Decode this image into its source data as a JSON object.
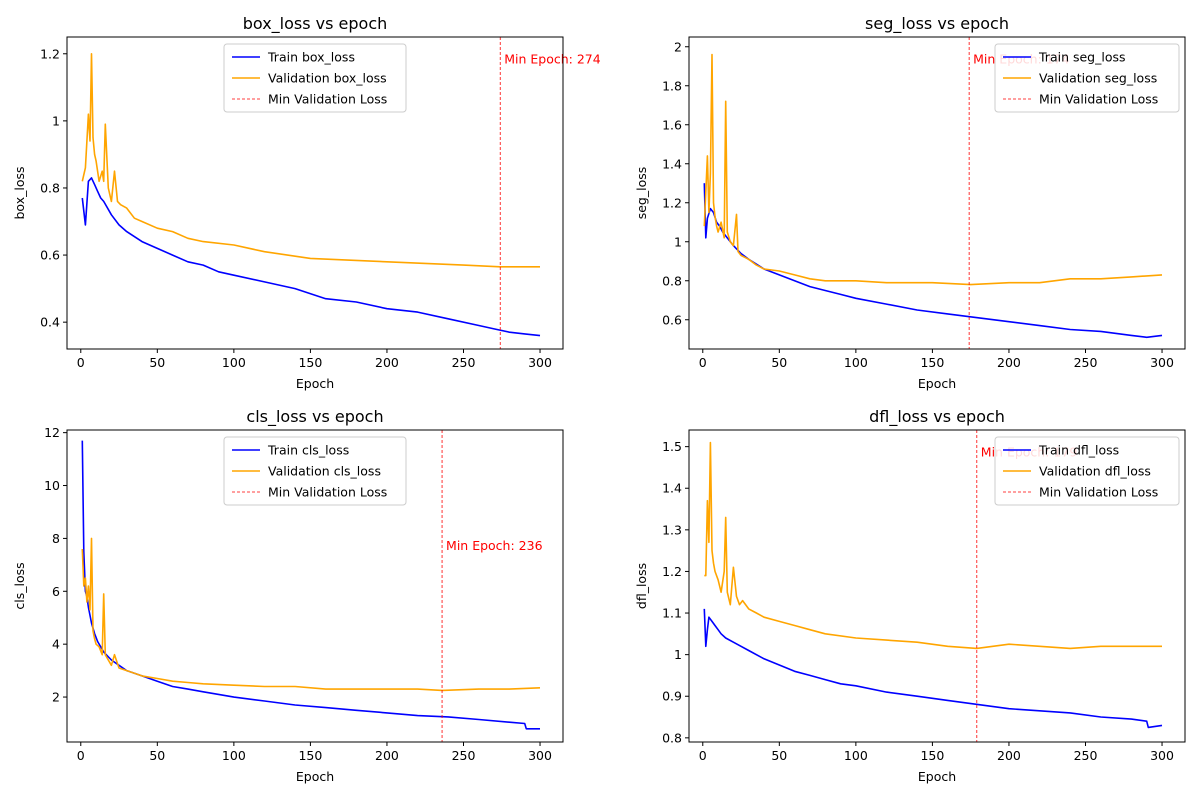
{
  "chart_data": [
    {
      "type": "line",
      "title": "box_loss vs epoch",
      "xlabel": "Epoch",
      "ylabel": "box_loss",
      "xlim": [
        -9,
        315
      ],
      "ylim": [
        0.32,
        1.25
      ],
      "xticks": [
        0,
        50,
        100,
        150,
        200,
        250,
        300
      ],
      "yticks": [
        0.4,
        0.6,
        0.8,
        1.0,
        1.2
      ],
      "grid": false,
      "legend_position": "top-center",
      "series": [
        {
          "name": "Train box_loss",
          "color": "#0000ff",
          "x": [
            1,
            3,
            5,
            7,
            9,
            11,
            13,
            15,
            20,
            25,
            30,
            40,
            50,
            60,
            70,
            80,
            90,
            100,
            120,
            140,
            160,
            180,
            200,
            220,
            240,
            260,
            270,
            280,
            290,
            300
          ],
          "y": [
            0.77,
            0.69,
            0.82,
            0.83,
            0.81,
            0.79,
            0.77,
            0.76,
            0.72,
            0.69,
            0.67,
            0.64,
            0.62,
            0.6,
            0.58,
            0.57,
            0.55,
            0.54,
            0.52,
            0.5,
            0.47,
            0.46,
            0.44,
            0.43,
            0.41,
            0.39,
            0.38,
            0.37,
            0.365,
            0.36
          ]
        },
        {
          "name": "Validation box_loss",
          "color": "#ffa500",
          "x": [
            1,
            3,
            5,
            6,
            7,
            8,
            9,
            10,
            12,
            14,
            15,
            16,
            18,
            20,
            22,
            24,
            26,
            30,
            35,
            40,
            50,
            60,
            70,
            80,
            100,
            120,
            150,
            200,
            250,
            274,
            300
          ],
          "y": [
            0.82,
            0.86,
            1.02,
            0.94,
            1.2,
            0.95,
            0.9,
            0.88,
            0.82,
            0.85,
            0.82,
            0.99,
            0.8,
            0.76,
            0.85,
            0.76,
            0.75,
            0.74,
            0.71,
            0.7,
            0.68,
            0.67,
            0.65,
            0.64,
            0.63,
            0.61,
            0.59,
            0.58,
            0.57,
            0.565,
            0.565
          ]
        }
      ],
      "min_line": {
        "label": "Min Validation Loss",
        "color": "#ff0000",
        "x": 274,
        "annotation": "Min Epoch: 274"
      }
    },
    {
      "type": "line",
      "title": "seg_loss vs epoch",
      "xlabel": "Epoch",
      "ylabel": "seg_loss",
      "xlim": [
        -9,
        315
      ],
      "ylim": [
        0.45,
        2.05
      ],
      "xticks": [
        0,
        50,
        100,
        150,
        200,
        250,
        300
      ],
      "yticks": [
        0.6,
        0.8,
        1.0,
        1.2,
        1.4,
        1.6,
        1.8,
        2.0
      ],
      "grid": false,
      "legend_position": "top-right",
      "series": [
        {
          "name": "Train seg_loss",
          "color": "#0000ff",
          "x": [
            1,
            2,
            3,
            5,
            7,
            9,
            11,
            13,
            15,
            20,
            25,
            30,
            40,
            50,
            60,
            70,
            80,
            90,
            100,
            120,
            140,
            160,
            180,
            200,
            220,
            240,
            260,
            280,
            290,
            300
          ],
          "y": [
            1.3,
            1.02,
            1.12,
            1.17,
            1.15,
            1.1,
            1.08,
            1.05,
            1.03,
            0.98,
            0.94,
            0.91,
            0.86,
            0.83,
            0.8,
            0.77,
            0.75,
            0.73,
            0.71,
            0.68,
            0.65,
            0.63,
            0.61,
            0.59,
            0.57,
            0.55,
            0.54,
            0.52,
            0.51,
            0.52
          ]
        },
        {
          "name": "Validation seg_loss",
          "color": "#ffa500",
          "x": [
            1,
            3,
            4,
            5,
            6,
            7,
            8,
            9,
            10,
            12,
            14,
            15,
            16,
            18,
            20,
            22,
            23,
            25,
            30,
            35,
            40,
            50,
            60,
            70,
            80,
            100,
            120,
            150,
            175,
            200,
            220,
            240,
            260,
            280,
            300
          ],
          "y": [
            1.08,
            1.44,
            1.15,
            1.35,
            1.96,
            1.2,
            1.13,
            1.08,
            1.05,
            1.1,
            1.02,
            1.72,
            1.05,
            1.0,
            0.98,
            1.14,
            0.95,
            0.93,
            0.91,
            0.88,
            0.86,
            0.85,
            0.83,
            0.81,
            0.8,
            0.8,
            0.79,
            0.79,
            0.78,
            0.79,
            0.79,
            0.81,
            0.81,
            0.82,
            0.83
          ]
        }
      ],
      "min_line": {
        "label": "Min Validation Loss",
        "color": "#ff0000",
        "x": 174,
        "annotation": "Min Epoch: 174"
      }
    },
    {
      "type": "line",
      "title": "cls_loss vs epoch",
      "xlabel": "Epoch",
      "ylabel": "cls_loss",
      "xlim": [
        -9,
        315
      ],
      "ylim": [
        0.3,
        12.1
      ],
      "xticks": [
        0,
        50,
        100,
        150,
        200,
        250,
        300
      ],
      "yticks": [
        2,
        4,
        6,
        8,
        10,
        12
      ],
      "grid": false,
      "legend_position": "top-center",
      "series": [
        {
          "name": "Train cls_loss",
          "color": "#0000ff",
          "x": [
            1,
            2,
            3,
            4,
            5,
            7,
            9,
            11,
            13,
            15,
            20,
            25,
            30,
            40,
            50,
            60,
            70,
            80,
            90,
            100,
            120,
            140,
            160,
            180,
            200,
            220,
            240,
            260,
            280,
            290,
            291,
            300
          ],
          "y": [
            11.7,
            7.5,
            6.0,
            5.8,
            5.4,
            4.8,
            4.4,
            4.1,
            3.9,
            3.7,
            3.4,
            3.2,
            3.0,
            2.8,
            2.6,
            2.4,
            2.3,
            2.2,
            2.1,
            2.0,
            1.85,
            1.7,
            1.6,
            1.5,
            1.4,
            1.3,
            1.25,
            1.15,
            1.05,
            1.0,
            0.8,
            0.8
          ]
        },
        {
          "name": "Validation cls_loss",
          "color": "#ffa500",
          "x": [
            1,
            2,
            3,
            4,
            5,
            6,
            7,
            8,
            9,
            10,
            12,
            14,
            15,
            16,
            18,
            20,
            22,
            25,
            30,
            35,
            40,
            50,
            60,
            70,
            80,
            100,
            120,
            140,
            160,
            180,
            200,
            220,
            236,
            260,
            280,
            300
          ],
          "y": [
            7.6,
            6.2,
            6.5,
            5.6,
            6.2,
            5.3,
            8.0,
            4.5,
            4.2,
            4.0,
            3.9,
            3.6,
            5.9,
            3.6,
            3.4,
            3.2,
            3.6,
            3.1,
            3.0,
            2.9,
            2.8,
            2.7,
            2.6,
            2.55,
            2.5,
            2.45,
            2.4,
            2.4,
            2.3,
            2.3,
            2.3,
            2.3,
            2.25,
            2.3,
            2.3,
            2.35
          ]
        }
      ],
      "min_line": {
        "label": "Min Validation Loss",
        "color": "#ff0000",
        "x": 236,
        "annotation": "Min Epoch: 236"
      }
    },
    {
      "type": "line",
      "title": "dfl_loss vs epoch",
      "xlabel": "Epoch",
      "ylabel": "dfl_loss",
      "xlim": [
        -9,
        315
      ],
      "ylim": [
        0.79,
        1.54
      ],
      "xticks": [
        0,
        50,
        100,
        150,
        200,
        250,
        300
      ],
      "yticks": [
        0.8,
        0.9,
        1.0,
        1.1,
        1.2,
        1.3,
        1.4,
        1.5
      ],
      "grid": false,
      "legend_position": "top-right",
      "series": [
        {
          "name": "Train dfl_loss",
          "color": "#0000ff",
          "x": [
            1,
            2,
            3,
            4,
            6,
            8,
            10,
            12,
            15,
            20,
            25,
            30,
            40,
            50,
            60,
            70,
            80,
            90,
            100,
            120,
            140,
            160,
            180,
            200,
            220,
            240,
            260,
            280,
            290,
            291,
            300
          ],
          "y": [
            1.11,
            1.02,
            1.06,
            1.09,
            1.08,
            1.07,
            1.06,
            1.05,
            1.04,
            1.03,
            1.02,
            1.01,
            0.99,
            0.975,
            0.96,
            0.95,
            0.94,
            0.93,
            0.925,
            0.91,
            0.9,
            0.89,
            0.88,
            0.87,
            0.865,
            0.86,
            0.85,
            0.845,
            0.84,
            0.825,
            0.83
          ]
        },
        {
          "name": "Validation dfl_loss",
          "color": "#ffa500",
          "x": [
            1,
            2,
            3,
            4,
            5,
            6,
            7,
            8,
            10,
            12,
            14,
            15,
            16,
            18,
            20,
            22,
            24,
            26,
            30,
            35,
            40,
            50,
            60,
            70,
            80,
            100,
            120,
            140,
            160,
            179,
            200,
            220,
            240,
            260,
            280,
            300
          ],
          "y": [
            1.19,
            1.19,
            1.37,
            1.27,
            1.51,
            1.25,
            1.22,
            1.2,
            1.18,
            1.15,
            1.2,
            1.33,
            1.15,
            1.12,
            1.21,
            1.14,
            1.12,
            1.13,
            1.11,
            1.1,
            1.09,
            1.08,
            1.07,
            1.06,
            1.05,
            1.04,
            1.035,
            1.03,
            1.02,
            1.015,
            1.025,
            1.02,
            1.015,
            1.02,
            1.02,
            1.02
          ]
        }
      ],
      "min_line": {
        "label": "Min Validation Loss",
        "color": "#ff0000",
        "x": 179,
        "annotation": "Min Epoch: 179"
      }
    }
  ]
}
